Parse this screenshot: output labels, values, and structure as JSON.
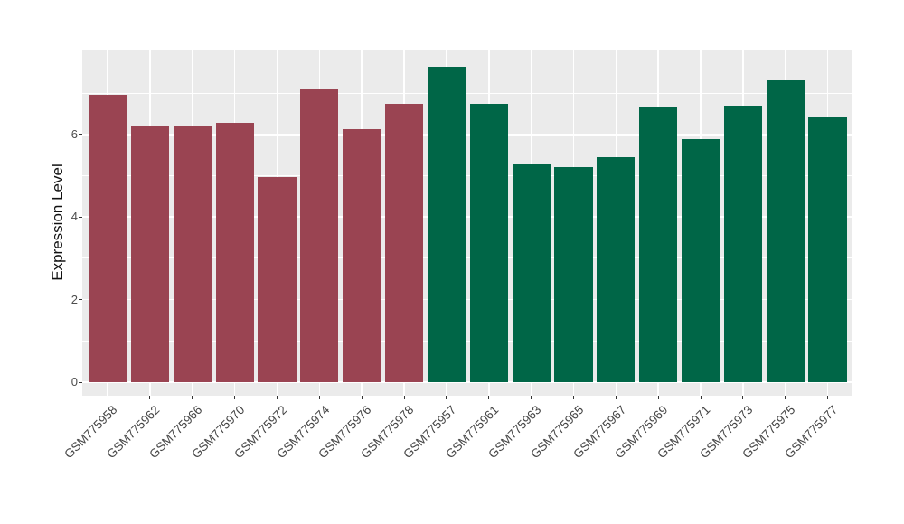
{
  "figure": {
    "background_color": "#FFFFFF",
    "panel_color": "#EBEBEB",
    "grid_color": "#FFFFFF",
    "tick_color": "#333333",
    "axis_text_color": "#4D4D4D",
    "axis_title_color": "#111111"
  },
  "chart_data": {
    "type": "bar",
    "title": "",
    "xlabel": "",
    "ylabel": "Expression Level",
    "ylim": [
      0,
      8.05
    ],
    "yticks": [
      0,
      2,
      4,
      6
    ],
    "ytick_labels": [
      "0",
      "2",
      "4",
      "6"
    ],
    "minor_gridlines": [
      1,
      3,
      5,
      7
    ],
    "grid": true,
    "legend_position": "none",
    "x_label_angle": 45,
    "group_colors": [
      {
        "name": "group-1-maroon",
        "color": "#9A4452",
        "count": 8
      },
      {
        "name": "group-2-green",
        "color": "#006647",
        "count": 10
      }
    ],
    "bars": [
      {
        "label": "GSM775958",
        "value": 6.95,
        "color": "#9A4452"
      },
      {
        "label": "GSM775962",
        "value": 6.2,
        "color": "#9A4452"
      },
      {
        "label": "GSM775966",
        "value": 6.2,
        "color": "#9A4452"
      },
      {
        "label": "GSM775970",
        "value": 6.27,
        "color": "#9A4452"
      },
      {
        "label": "GSM775972",
        "value": 4.96,
        "color": "#9A4452"
      },
      {
        "label": "GSM775974",
        "value": 7.12,
        "color": "#9A4452"
      },
      {
        "label": "GSM775976",
        "value": 6.13,
        "color": "#9A4452"
      },
      {
        "label": "GSM775978",
        "value": 6.73,
        "color": "#9A4452"
      },
      {
        "label": "GSM775957",
        "value": 7.64,
        "color": "#006647"
      },
      {
        "label": "GSM775961",
        "value": 6.73,
        "color": "#006647"
      },
      {
        "label": "GSM775963",
        "value": 5.3,
        "color": "#006647"
      },
      {
        "label": "GSM775965",
        "value": 5.2,
        "color": "#006647"
      },
      {
        "label": "GSM775967",
        "value": 5.45,
        "color": "#006647"
      },
      {
        "label": "GSM775969",
        "value": 6.67,
        "color": "#006647"
      },
      {
        "label": "GSM775971",
        "value": 5.89,
        "color": "#006647"
      },
      {
        "label": "GSM775973",
        "value": 6.7,
        "color": "#006647"
      },
      {
        "label": "GSM775975",
        "value": 7.3,
        "color": "#006647"
      },
      {
        "label": "GSM775977",
        "value": 6.41,
        "color": "#006647"
      }
    ]
  }
}
